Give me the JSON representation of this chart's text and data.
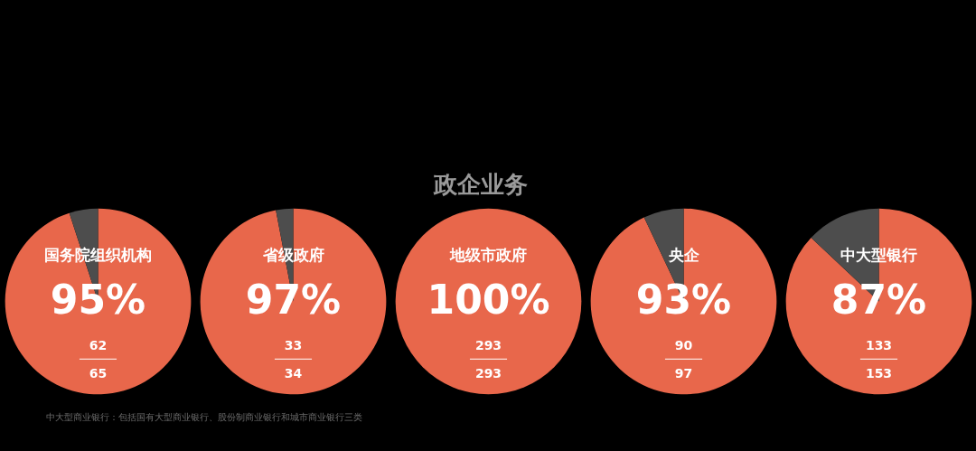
{
  "chart_data": [
    {
      "type": "other",
      "title": "政企业务",
      "annotations": [
        "中大型商业银行：包括国有大型商业银行、股份制商业银行和城市商业银行三类"
      ]
    },
    {
      "type": "pie",
      "title": "国务院组织机构",
      "categories": [
        null,
        null
      ],
      "values": [
        95,
        5
      ],
      "colors": [
        "#e8674b",
        "#4d4d4d"
      ],
      "value_labels": [
        "95%",
        null
      ],
      "annotations": [
        "62",
        "65"
      ]
    },
    {
      "type": "pie",
      "title": "省级政府",
      "categories": [
        null,
        null
      ],
      "values": [
        97,
        3
      ],
      "colors": [
        "#e8674b",
        "#4d4d4d"
      ],
      "value_labels": [
        "97%",
        null
      ],
      "annotations": [
        "33",
        "34"
      ]
    },
    {
      "type": "pie",
      "title": "地级市政府",
      "categories": [
        null,
        null
      ],
      "values": [
        100,
        0
      ],
      "colors": [
        "#e8674b",
        "#4d4d4d"
      ],
      "value_labels": [
        "100%",
        null
      ],
      "annotations": [
        "293",
        "293"
      ]
    },
    {
      "type": "pie",
      "title": "央企",
      "categories": [
        null,
        null
      ],
      "values": [
        93,
        7
      ],
      "colors": [
        "#e8674b",
        "#4d4d4d"
      ],
      "value_labels": [
        "93%",
        null
      ],
      "annotations": [
        "90",
        "97"
      ]
    },
    {
      "type": "pie",
      "title": "中大型银行",
      "categories": [
        null,
        null
      ],
      "values": [
        87,
        13
      ],
      "colors": [
        "#e8674b",
        "#4d4d4d"
      ],
      "value_labels": [
        "87%",
        null
      ],
      "annotations": [
        "133",
        "153"
      ]
    }
  ]
}
